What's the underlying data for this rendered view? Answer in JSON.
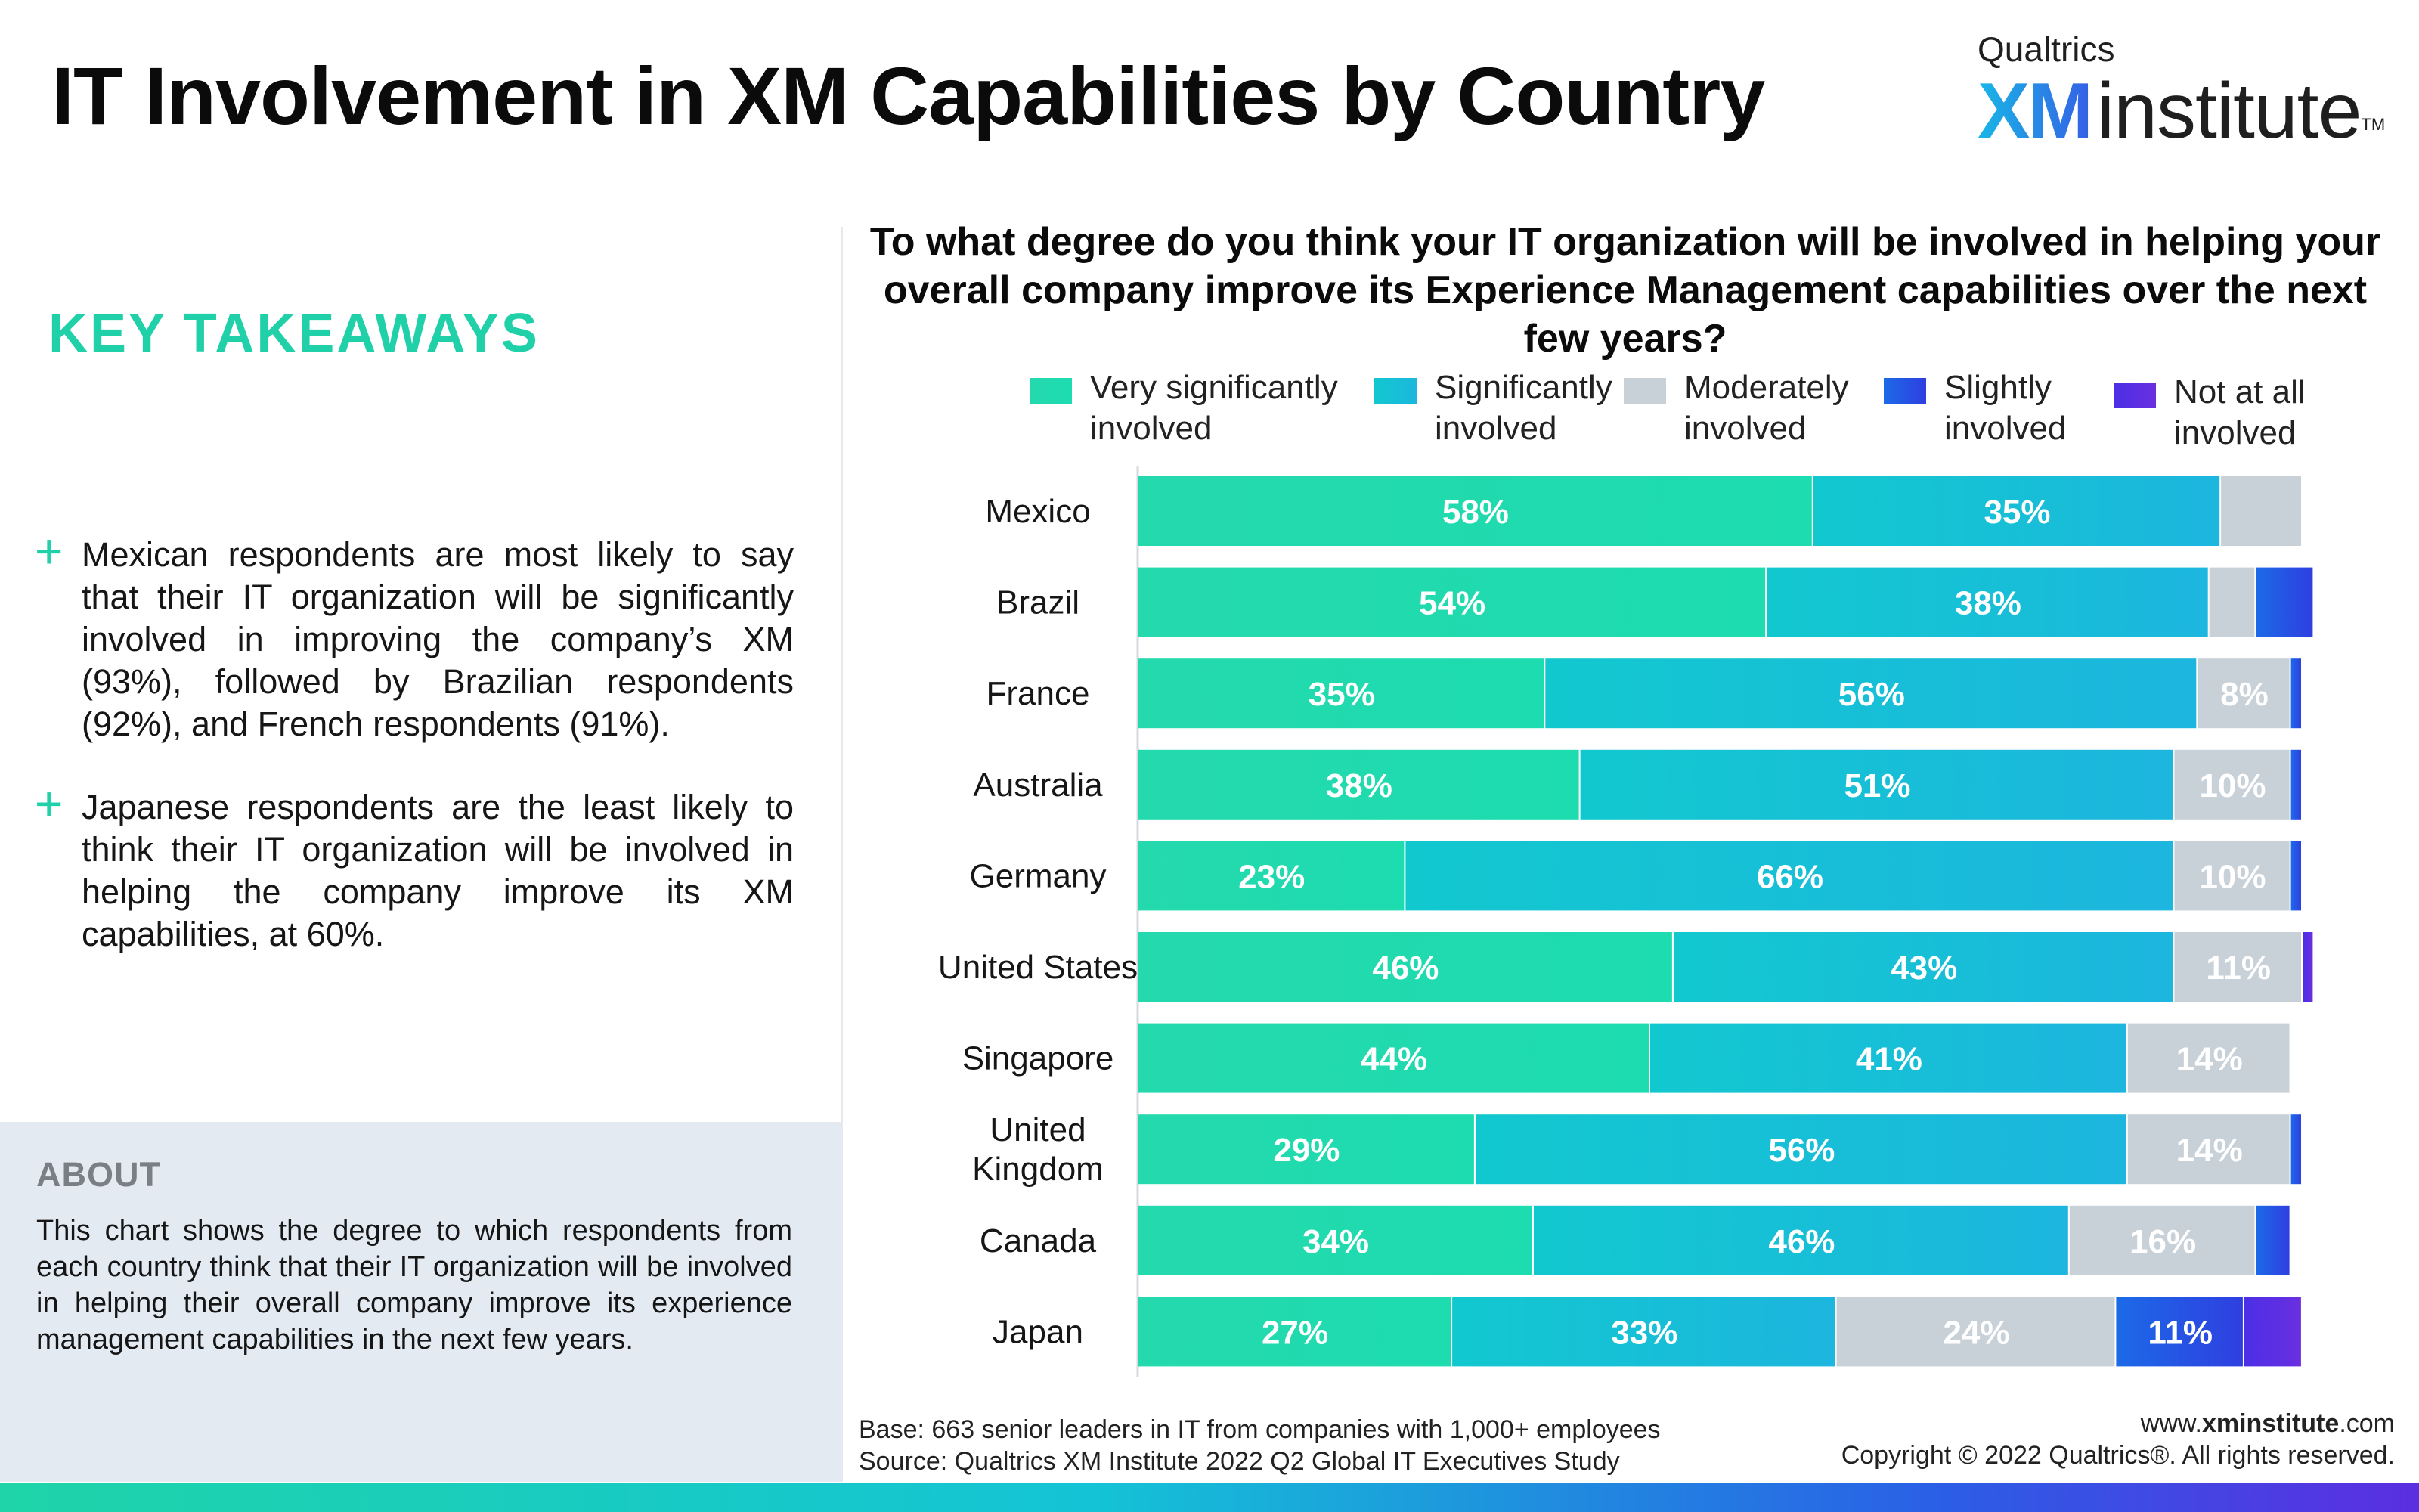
{
  "header": {
    "title": "IT Involvement in XM Capabilities by Country",
    "logo_top": "Qualtrics",
    "logo_xm": "XM",
    "logo_institute": "institute",
    "logo_tm": "TM"
  },
  "key_takeaways": {
    "heading": "KEY TAKEAWAYS",
    "items": [
      "Mexican respondents are most likely to say that their IT organization will be significantly involved in improving the company’s XM (93%), followed by Brazilian respondents (92%), and French respondents (91%).",
      "Japanese  respondents are the least likely to think their IT organization will be involved in helping the company improve its XM capabilities, at 60%."
    ]
  },
  "about": {
    "heading": "ABOUT",
    "body": "This chart shows the degree to which respondents from each country think that their IT organization will be involved in helping their overall company improve its experience management capabilities in the next few years."
  },
  "footer": {
    "base": "Base: 663 senior leaders in IT from companies with 1,000+ employees",
    "source": "Source: Qualtrics XM Institute 2022 Q2 Global IT Executives Study",
    "url_prefix": "www.",
    "url_bold": "xminstitute",
    "url_suffix": ".com",
    "copyright": "Copyright © 2022 Qualtrics®. All rights reserved."
  },
  "chart_data": {
    "type": "bar",
    "orientation": "horizontal",
    "stacked": true,
    "title": "To what degree do you think your IT organization will be involved in helping your overall company improve its Experience Management capabilities over the next few years?",
    "xlim": [
      0,
      100
    ],
    "unit": "%",
    "legend_position": "top",
    "categories": [
      "Mexico",
      "Brazil",
      "France",
      "Australia",
      "Germany",
      "United States",
      "Singapore",
      "United Kingdom",
      "Canada",
      "Japan"
    ],
    "series": [
      {
        "name": "Very significantly involved",
        "values": [
          58,
          54,
          35,
          38,
          23,
          46,
          44,
          29,
          34,
          27
        ],
        "color": "#24d9ad",
        "color_end": "#1ddcb0",
        "label_color": "#ffffff"
      },
      {
        "name": "Significantly involved",
        "values": [
          35,
          38,
          56,
          51,
          66,
          43,
          41,
          56,
          46,
          33
        ],
        "color": "#12c8cf",
        "color_end": "#1cb6de",
        "label_color": "#ffffff"
      },
      {
        "name": "Moderately involved",
        "values": [
          7,
          4,
          8,
          10,
          10,
          11,
          14,
          14,
          16,
          24
        ],
        "color": "#c8d0d8",
        "color_end": "#c8d0d8",
        "label_color": "#eef2f6"
      },
      {
        "name": "Slightly involved",
        "values": [
          0,
          5,
          1,
          1,
          1,
          0,
          0,
          1,
          3,
          11
        ],
        "color": "#1c6ae8",
        "color_end": "#2e3fe0",
        "label_color": "#ffffff"
      },
      {
        "name": "Not at all involved",
        "values": [
          0,
          0,
          0,
          0,
          0,
          1,
          0,
          0,
          0,
          5
        ],
        "color": "#4b2fe6",
        "color_end": "#6a2fe0",
        "label_color": "#ffffff"
      }
    ],
    "data_labels": [
      [
        "58%",
        "35%",
        "",
        "",
        ""
      ],
      [
        "54%",
        "38%",
        "",
        "",
        ""
      ],
      [
        "35%",
        "56%",
        "8%",
        "",
        ""
      ],
      [
        "38%",
        "51%",
        "10%",
        "",
        ""
      ],
      [
        "23%",
        "66%",
        "10%",
        "",
        ""
      ],
      [
        "46%",
        "43%",
        "11%",
        "",
        ""
      ],
      [
        "44%",
        "41%",
        "14%",
        "",
        ""
      ],
      [
        "29%",
        "56%",
        "14%",
        "",
        ""
      ],
      [
        "34%",
        "46%",
        "16%",
        "",
        ""
      ],
      [
        "27%",
        "33%",
        "24%",
        "11%",
        ""
      ]
    ],
    "category_lines": {
      "United Kingdom": [
        "United",
        "Kingdom"
      ]
    }
  }
}
